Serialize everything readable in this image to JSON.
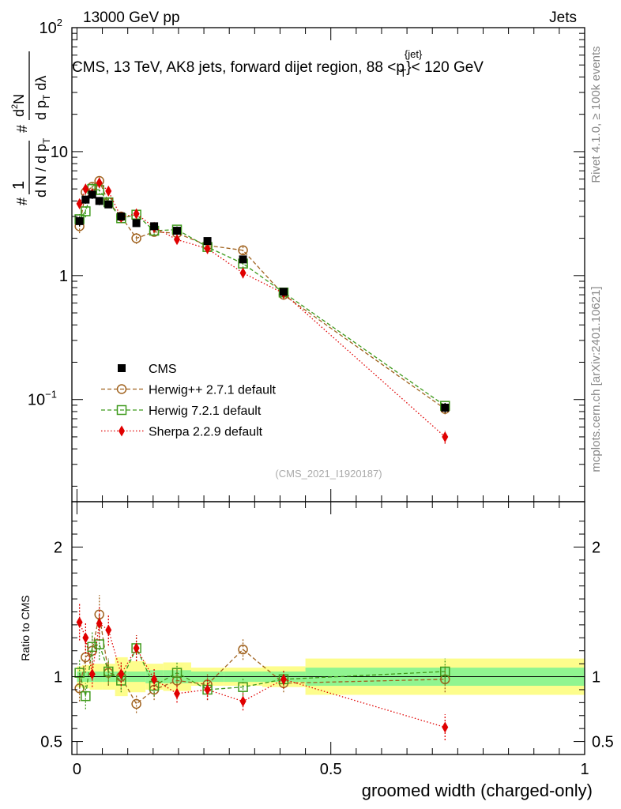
{
  "header": {
    "energy": "13000 GeV pp",
    "category": "Jets",
    "rivet": "Rivet 4.1.0, ≥ 100k events",
    "source": "mcplots.cern.ch [arXiv:2401.10621]",
    "analysis_id": "(CMS_2021_I1920187)"
  },
  "colors": {
    "data": "#000000",
    "herwigpp": "#a0621e",
    "herwig7": "#3f9a1c",
    "sherpa": "#e00000",
    "band_outer": "#fdfd8c",
    "band_inner": "#90f590"
  },
  "chart_data": [
    {
      "type": "line",
      "panel": "main",
      "title": "CMS, 13 TeV, AK8 jets, forward dijet region, 88 <p_T^{jet}< 120 GeV",
      "ylabel": "1/dN/dp_T  d²N/dp_T dλ",
      "yscale": "log",
      "ylim": [
        0.015,
        100
      ],
      "xlim": [
        -0.01,
        1.0
      ],
      "yticks": [
        {
          "v": 100,
          "base": "10",
          "exp": "2"
        },
        {
          "v": 10,
          "base": "10",
          "exp": ""
        },
        {
          "v": 1,
          "base": "1",
          "exp": ""
        },
        {
          "v": 0.1,
          "base": "10",
          "exp": "−1"
        }
      ],
      "legend": [
        {
          "key": "data",
          "label": "CMS"
        },
        {
          "key": "herwigpp",
          "label": "Herwig++ 2.7.1 default"
        },
        {
          "key": "herwig7",
          "label": "Herwig 7.2.1 default"
        },
        {
          "key": "sherpa",
          "label": "Sherpa 2.2.9 default"
        }
      ],
      "x": [
        0.005,
        0.017,
        0.03,
        0.044,
        0.062,
        0.087,
        0.117,
        0.152,
        0.197,
        0.257,
        0.327,
        0.407,
        0.725
      ],
      "bin_edges": [
        0.0,
        0.01,
        0.025,
        0.035,
        0.05,
        0.075,
        0.1,
        0.135,
        0.17,
        0.225,
        0.29,
        0.365,
        0.45,
        1.0
      ],
      "series": [
        {
          "key": "data",
          "name": "CMS",
          "values": [
            2.75,
            4.1,
            4.5,
            4.0,
            3.75,
            3.0,
            2.65,
            2.5,
            2.3,
            1.9,
            1.35,
            0.74,
            0.086
          ],
          "err": [
            0.25,
            0.3,
            0.35,
            0.3,
            0.25,
            0.2,
            0.15,
            0.15,
            0.12,
            0.1,
            0.08,
            0.05,
            0.008
          ]
        },
        {
          "key": "herwigpp",
          "name": "Herwig++ 2.7.1 default",
          "values": [
            2.5,
            4.7,
            5.2,
            5.8,
            3.9,
            3.0,
            2.0,
            2.25,
            2.2,
            1.75,
            1.6,
            0.7,
            0.084
          ],
          "err": [
            0.3,
            0.4,
            0.4,
            0.45,
            0.3,
            0.25,
            0.2,
            0.18,
            0.15,
            0.15,
            0.12,
            0.06,
            0.008
          ]
        },
        {
          "key": "herwig7",
          "name": "Herwig 7.2.1 default",
          "values": [
            2.85,
            3.3,
            5.0,
            4.9,
            3.9,
            2.9,
            3.1,
            2.3,
            2.35,
            1.7,
            1.25,
            0.73,
            0.089
          ],
          "err": [
            0.3,
            0.35,
            0.4,
            0.4,
            0.3,
            0.25,
            0.25,
            0.18,
            0.15,
            0.15,
            0.1,
            0.06,
            0.008
          ]
        },
        {
          "key": "sherpa",
          "name": "Sherpa 2.2.9 default",
          "values": [
            3.8,
            5.0,
            4.6,
            5.6,
            4.8,
            2.95,
            3.15,
            2.45,
            1.95,
            1.65,
            1.05,
            0.72,
            0.05
          ],
          "err": [
            0.35,
            0.4,
            0.4,
            0.45,
            0.35,
            0.25,
            0.25,
            0.2,
            0.15,
            0.15,
            0.1,
            0.06,
            0.006
          ]
        }
      ]
    },
    {
      "type": "line",
      "panel": "ratio",
      "ylabel": "Ratio to CMS",
      "xlabel": "groomed width (charged-only)",
      "ylim": [
        0.4,
        2.35
      ],
      "xlim": [
        -0.01,
        1.0
      ],
      "yticks": [
        0.5,
        1,
        2
      ],
      "ytick_labels": [
        "0.5",
        "1",
        "2"
      ],
      "xticks": [
        0,
        0.5,
        1
      ],
      "xtick_labels": [
        "0",
        "0.5",
        "1"
      ],
      "band_outer": [
        0.08,
        0.09,
        0.1,
        0.1,
        0.1,
        0.15,
        0.12,
        0.1,
        0.11,
        0.07,
        0.07,
        0.08,
        0.14
      ],
      "band_inner": [
        0.04,
        0.04,
        0.04,
        0.04,
        0.04,
        0.04,
        0.04,
        0.05,
        0.05,
        0.04,
        0.04,
        0.04,
        0.07
      ],
      "series": [
        {
          "key": "herwigpp",
          "values": [
            0.91,
            1.15,
            1.2,
            1.48,
            1.03,
            1.0,
            0.79,
            0.9,
            0.97,
            0.94,
            1.21,
            0.95,
            0.98
          ],
          "err": [
            0.1,
            0.12,
            0.12,
            0.15,
            0.1,
            0.1,
            0.07,
            0.08,
            0.08,
            0.08,
            0.08,
            0.07,
            0.1
          ]
        },
        {
          "key": "herwig7",
          "values": [
            1.03,
            0.85,
            1.23,
            1.25,
            1.04,
            0.97,
            1.22,
            0.93,
            1.03,
            0.9,
            0.92,
            0.98,
            1.04
          ],
          "err": [
            0.11,
            0.1,
            0.12,
            0.12,
            0.1,
            0.09,
            0.1,
            0.08,
            0.08,
            0.08,
            0.07,
            0.07,
            0.1
          ]
        },
        {
          "key": "sherpa",
          "values": [
            1.42,
            1.3,
            1.02,
            1.41,
            1.36,
            1.02,
            1.22,
            0.98,
            0.87,
            0.9,
            0.81,
            0.98,
            0.61
          ],
          "err": [
            0.14,
            0.12,
            0.1,
            0.13,
            0.12,
            0.09,
            0.1,
            0.08,
            0.07,
            0.08,
            0.07,
            0.07,
            0.1
          ]
        }
      ]
    }
  ]
}
